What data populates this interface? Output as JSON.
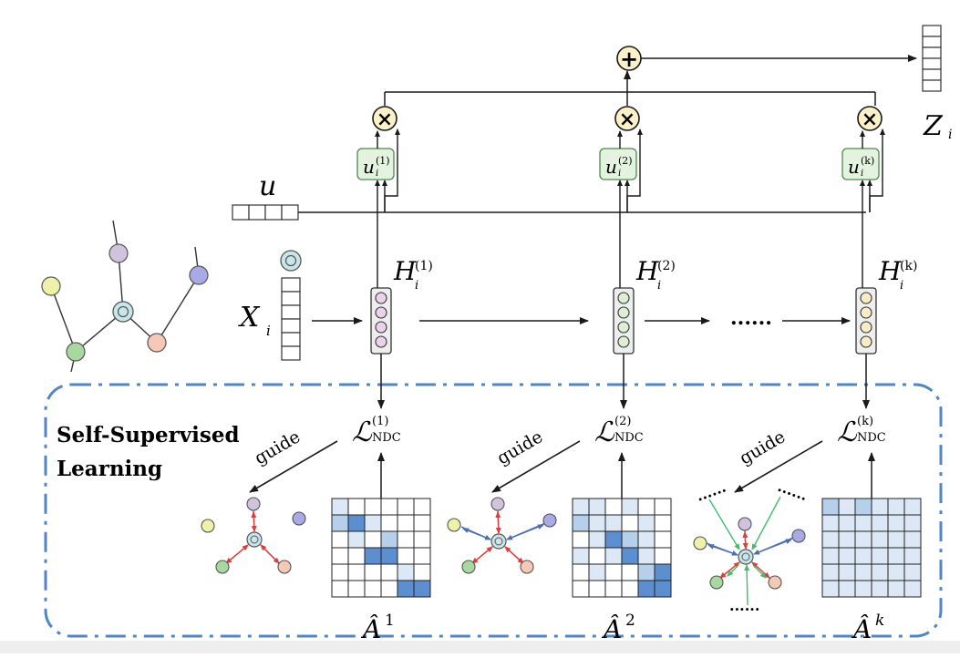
{
  "colors": {
    "line": "#1a1a1a",
    "dashBox": "#4f86c6",
    "opFill": "#fbf1c8",
    "weightFill": "#e4f3e0",
    "weightStroke": "#4a8a4a",
    "hBoxFill": "#eeeeee",
    "hCirclePurple": "#ead3ea",
    "hCircleGreen": "#dcefd2",
    "hCircleYellow": "#f6ecc8",
    "nodePurple": "#cfc3dd",
    "nodeBlue": "#a9a9e6",
    "nodeYellow": "#eef2a8",
    "nodeGreen": "#a7d8a0",
    "nodePink": "#f6c9b6",
    "nodeCenter": "#c8e6ea",
    "arrowRed": "#e23b3b",
    "arrowBlue": "#4a6fb3",
    "arrowGreen": "#3fbf6a",
    "matrixLight": "#dce8f6",
    "matrixMid": "#b6cfeb",
    "matrixDark": "#5b8fd0"
  },
  "labels": {
    "u": "u",
    "x": "X",
    "x_sub": "i",
    "z": "Z",
    "z_sub": "i",
    "guide": "guide",
    "ssl_line1": "Self-Supervised",
    "ssl_line2": "Learning",
    "dots": "......",
    "loss_symbol": "ℒ",
    "loss_sub": "NDC",
    "plus_symbol": "+",
    "times_symbol": "×"
  },
  "columns": [
    {
      "id": "1",
      "h_label": "H",
      "h_sub": "i",
      "h_sup": "(1)",
      "u_label": "u",
      "u_sub": "i",
      "u_sup": "(1)",
      "loss_sup": "(1)",
      "matrix_label": "Â",
      "matrix_sup": "1"
    },
    {
      "id": "2",
      "h_label": "H",
      "h_sub": "i",
      "h_sup": "(2)",
      "u_label": "u",
      "u_sub": "i",
      "u_sup": "(2)",
      "loss_sup": "(2)",
      "matrix_label": "Â",
      "matrix_sup": "2"
    },
    {
      "id": "k",
      "h_label": "H",
      "h_sub": "i",
      "h_sup": "(k)",
      "u_label": "u",
      "u_sub": "i",
      "u_sup": "(k)",
      "loss_sup": "(k)",
      "matrix_label": "Â",
      "matrix_sup": "k"
    }
  ],
  "matrices": [
    {
      "cells": [
        [
          1,
          0,
          0,
          0,
          0,
          0
        ],
        [
          2,
          3,
          1,
          0,
          0,
          0
        ],
        [
          0,
          1,
          0,
          2,
          0,
          0
        ],
        [
          0,
          0,
          3,
          3,
          0,
          0
        ],
        [
          0,
          0,
          0,
          0,
          1,
          0
        ],
        [
          0,
          0,
          0,
          0,
          3,
          3
        ]
      ]
    },
    {
      "cells": [
        [
          1,
          1,
          0,
          1,
          0,
          0
        ],
        [
          2,
          1,
          1,
          0,
          1,
          0
        ],
        [
          0,
          1,
          3,
          2,
          1,
          0
        ],
        [
          1,
          0,
          1,
          3,
          1,
          0
        ],
        [
          0,
          1,
          0,
          0,
          2,
          3
        ],
        [
          0,
          0,
          0,
          0,
          3,
          3
        ]
      ]
    },
    {
      "cells": [
        [
          2,
          1,
          2,
          1,
          1,
          1
        ],
        [
          1,
          1,
          1,
          1,
          1,
          1
        ],
        [
          1,
          1,
          1,
          1,
          1,
          1
        ],
        [
          1,
          1,
          1,
          1,
          1,
          1
        ],
        [
          1,
          1,
          1,
          1,
          1,
          1
        ],
        [
          1,
          1,
          1,
          1,
          1,
          1
        ]
      ]
    }
  ]
}
